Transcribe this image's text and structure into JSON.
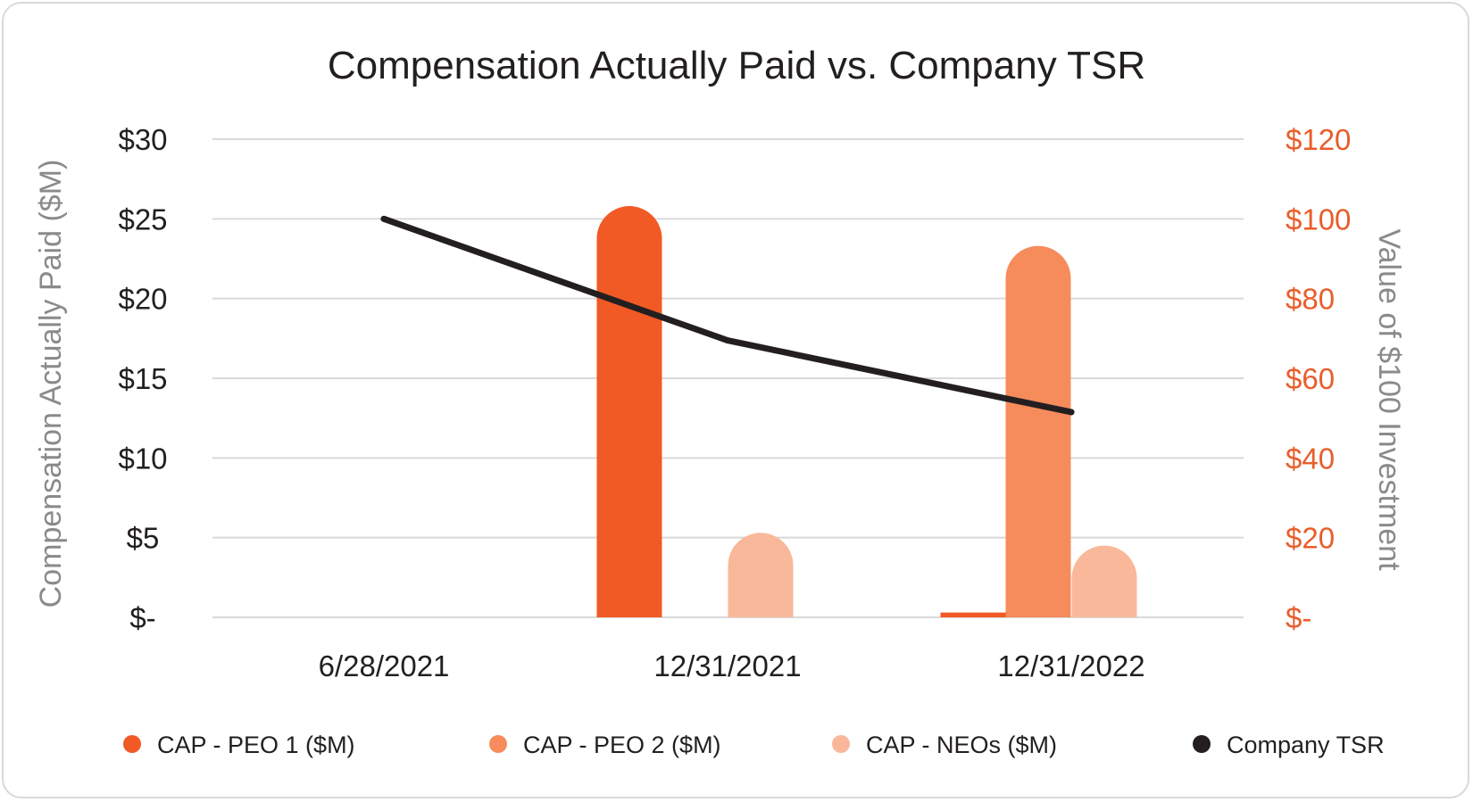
{
  "chart_data": {
    "type": "bar",
    "title": "Compensation Actually Paid vs. Company TSR",
    "categories": [
      "6/28/2021",
      "12/31/2021",
      "12/31/2022"
    ],
    "ylabel": "Compensation Actually Paid ($M)",
    "y2label": "Value of $100 Investment",
    "ylim": [
      0,
      30
    ],
    "y2lim": [
      0,
      120
    ],
    "yticks": [
      "$-",
      "$5",
      "$10",
      "$15",
      "$20",
      "$25",
      "$30"
    ],
    "y2ticks": [
      "$-",
      "$20",
      "$40",
      "$60",
      "$80",
      "$100",
      "$120"
    ],
    "grid": true,
    "legend_position": "bottom",
    "series": [
      {
        "name": "CAP - PEO 1 ($M)",
        "kind": "bar",
        "color": "#f15a24",
        "values": [
          0,
          25.8,
          0.3
        ]
      },
      {
        "name": "CAP - PEO 2 ($M)",
        "kind": "bar",
        "color": "#f68b5c",
        "values": [
          0,
          0,
          23.3
        ]
      },
      {
        "name": "CAP - NEOs ($M)",
        "kind": "bar",
        "color": "#f9b899",
        "values": [
          0,
          5.3,
          4.5
        ]
      },
      {
        "name": "Company TSR",
        "kind": "line",
        "axis": "right",
        "color": "#231f20",
        "values": [
          100,
          69.5,
          51.5
        ]
      }
    ]
  }
}
